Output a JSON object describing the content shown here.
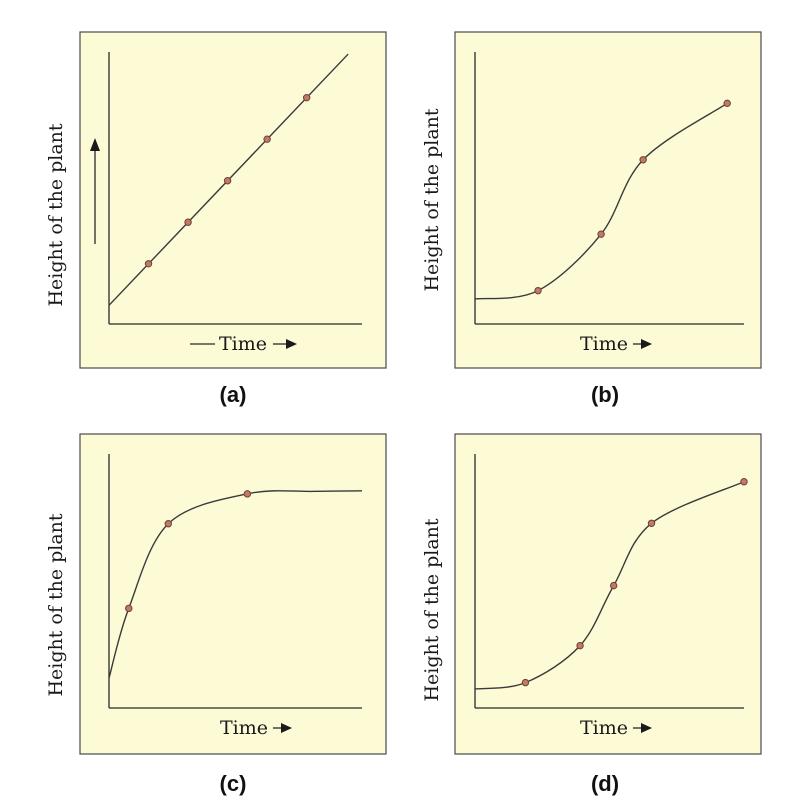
{
  "colors": {
    "panel_fill": "#fdfad6",
    "panel_border": "#4a4a4a",
    "curve": "#3a3a3a",
    "point_fill": "#c07a66",
    "point_stroke": "#6d4035"
  },
  "chart_data": [
    {
      "type": "line",
      "caption": "(a)",
      "ylabel": "Height of the plant",
      "xlabel": "Time",
      "y_arrow": true,
      "x_left_dash": true,
      "curve": "linear",
      "points": [
        [
          1,
          1
        ],
        [
          2,
          2
        ],
        [
          3,
          3
        ],
        [
          4,
          4
        ],
        [
          5,
          5
        ]
      ],
      "xlim": [
        0,
        6.4
      ],
      "ylim": [
        -0.45,
        6.1
      ]
    },
    {
      "type": "line",
      "caption": "(b)",
      "ylabel": "Height of the plant",
      "xlabel": "Time",
      "y_arrow": false,
      "x_left_dash": false,
      "curve": "sigmoid",
      "points": [
        [
          1.5,
          1.3
        ],
        [
          3,
          3.5
        ],
        [
          4,
          6.4
        ],
        [
          6,
          8.6
        ]
      ],
      "xlim": [
        0,
        6.4
      ],
      "ylim": [
        0,
        10.6
      ]
    },
    {
      "type": "line",
      "caption": "(c)",
      "ylabel": "Height of the plant",
      "xlabel": "Time",
      "y_arrow": false,
      "x_left_dash": false,
      "curve": "saturating",
      "points": [
        [
          0.5,
          4.0
        ],
        [
          1.5,
          7.4
        ],
        [
          3.5,
          8.6
        ]
      ],
      "xlim": [
        0,
        6.4
      ],
      "ylim": [
        0,
        10.2
      ]
    },
    {
      "type": "line",
      "caption": "(d)",
      "ylabel": "Height of the plant",
      "xlabel": "Time",
      "y_arrow": false,
      "x_left_dash": false,
      "curve": "sigmoid",
      "points": [
        [
          1.2,
          1.1
        ],
        [
          2.5,
          2.7
        ],
        [
          3.3,
          5.3
        ],
        [
          4.2,
          8.0
        ],
        [
          6.4,
          9.8
        ]
      ],
      "xlim": [
        0,
        6.4
      ],
      "ylim": [
        0,
        11.0
      ]
    }
  ]
}
